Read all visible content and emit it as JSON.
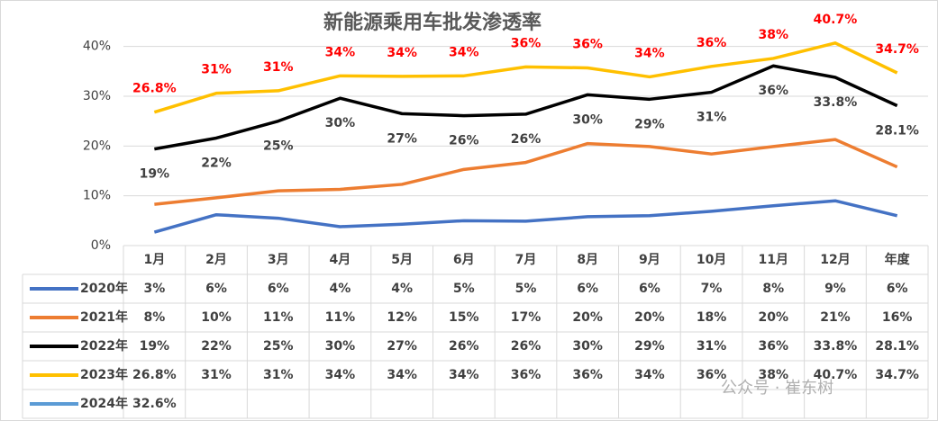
{
  "chart_data": {
    "type": "line",
    "title": "新能源乘用车批发渗透率",
    "categories": [
      "1月",
      "2月",
      "3月",
      "4月",
      "5月",
      "6月",
      "7月",
      "8月",
      "9月",
      "10月",
      "11月",
      "12月",
      "年度"
    ],
    "ylim": [
      0,
      45
    ],
    "yticks": [
      {
        "value": 0,
        "label": "0%"
      },
      {
        "value": 10,
        "label": "10%"
      },
      {
        "value": 20,
        "label": "20%"
      },
      {
        "value": 30,
        "label": "30%"
      },
      {
        "value": 40,
        "label": "40%"
      }
    ],
    "grid": true,
    "watermark": "公众号 · 崔东树",
    "series": [
      {
        "name": "2020年",
        "color": "#4472c4",
        "values": [
          2.7,
          6.2,
          5.5,
          3.8,
          4.3,
          5.0,
          4.9,
          5.8,
          6.0,
          6.9,
          8.0,
          9.0,
          6.0
        ],
        "value_labels": [
          "3%",
          "6%",
          "6%",
          "4%",
          "4%",
          "5%",
          "5%",
          "6%",
          "6%",
          "7%",
          "8%",
          "9%",
          "6%"
        ]
      },
      {
        "name": "2021年",
        "color": "#ed7d31",
        "values": [
          8.3,
          9.6,
          11.0,
          11.3,
          12.3,
          15.3,
          16.7,
          20.5,
          19.9,
          18.4,
          19.9,
          21.3,
          15.8
        ],
        "value_labels": [
          "8%",
          "10%",
          "11%",
          "11%",
          "12%",
          "15%",
          "17%",
          "20%",
          "20%",
          "18%",
          "20%",
          "21%",
          "16%"
        ]
      },
      {
        "name": "2022年",
        "color": "#000000",
        "values": [
          19.4,
          21.6,
          25.0,
          29.6,
          26.5,
          26.1,
          26.4,
          30.3,
          29.4,
          30.8,
          36.1,
          33.8,
          28.1
        ],
        "value_labels": [
          "19%",
          "22%",
          "25%",
          "30%",
          "27%",
          "26%",
          "26%",
          "30%",
          "29%",
          "31%",
          "36%",
          "33.8%",
          "28.1%"
        ],
        "label_color": "#404040",
        "label_position": "below"
      },
      {
        "name": "2023年",
        "color": "#ffc000",
        "values": [
          26.8,
          30.6,
          31.1,
          34.1,
          34.0,
          34.1,
          35.9,
          35.7,
          33.9,
          36.0,
          37.6,
          40.7,
          34.7
        ],
        "value_labels": [
          "26.8%",
          "31%",
          "31%",
          "34%",
          "34%",
          "34%",
          "36%",
          "36%",
          "34%",
          "36%",
          "38%",
          "40.7%",
          "34.7%"
        ],
        "label_color": "#ff0000",
        "label_position": "above"
      },
      {
        "name": "2024年",
        "color": "#5b9bd5",
        "values": [
          32.6,
          null,
          null,
          null,
          null,
          null,
          null,
          null,
          null,
          null,
          null,
          null,
          null
        ],
        "value_labels": [
          "32.6%",
          null,
          null,
          null,
          null,
          null,
          null,
          null,
          null,
          null,
          null,
          null,
          null
        ]
      }
    ]
  }
}
